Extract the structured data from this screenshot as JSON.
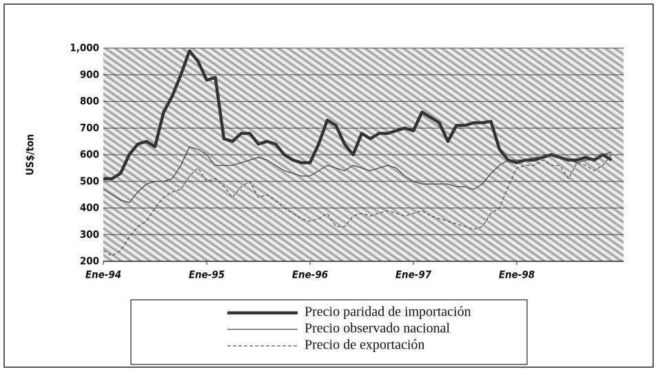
{
  "chart_data": {
    "type": "line",
    "ylabel": "US$/ton",
    "categories": [
      "Ene-94",
      null,
      null,
      null,
      null,
      null,
      null,
      null,
      null,
      null,
      null,
      null,
      "Ene-95",
      null,
      null,
      null,
      null,
      null,
      null,
      null,
      null,
      null,
      null,
      null,
      "Ene-96",
      null,
      null,
      null,
      null,
      null,
      null,
      null,
      null,
      null,
      null,
      null,
      "Ene-97",
      null,
      null,
      null,
      null,
      null,
      null,
      null,
      null,
      null,
      null,
      null,
      "Ene-98",
      null,
      null,
      null,
      null,
      null,
      null,
      null,
      null,
      null,
      null,
      null
    ],
    "series": [
      {
        "name": "Precio paridad de importación",
        "color": "#333333",
        "values": [
          510,
          510,
          530,
          600,
          640,
          650,
          630,
          760,
          820,
          900,
          990,
          950,
          880,
          890,
          660,
          650,
          680,
          680,
          640,
          650,
          640,
          600,
          580,
          570,
          570,
          640,
          730,
          710,
          640,
          600,
          680,
          660,
          680,
          680,
          690,
          700,
          690,
          760,
          740,
          720,
          650,
          710,
          710,
          720,
          720,
          725,
          620,
          580,
          570,
          580,
          580,
          590,
          600,
          590,
          580,
          580,
          590,
          580,
          600,
          580
        ]
      },
      {
        "name": "Precio observado nacional",
        "color": "#444444",
        "values": [
          470,
          450,
          430,
          420,
          460,
          490,
          500,
          500,
          510,
          560,
          630,
          620,
          600,
          560,
          560,
          560,
          570,
          580,
          590,
          580,
          560,
          540,
          530,
          520,
          520,
          540,
          560,
          550,
          540,
          560,
          550,
          540,
          550,
          560,
          550,
          520,
          500,
          490,
          490,
          490,
          490,
          480,
          480,
          470,
          490,
          530,
          560,
          580,
          580,
          580,
          590,
          590,
          600,
          590,
          580,
          570,
          580,
          580,
          600,
          610
        ]
      },
      {
        "name": "Precio de exportación",
        "color": "#555555",
        "values": [
          240,
          220,
          240,
          290,
          330,
          350,
          400,
          440,
          460,
          470,
          520,
          550,
          500,
          510,
          480,
          440,
          480,
          500,
          440,
          450,
          430,
          400,
          380,
          360,
          350,
          360,
          380,
          330,
          330,
          370,
          380,
          370,
          380,
          390,
          380,
          370,
          380,
          390,
          370,
          360,
          350,
          340,
          330,
          320,
          330,
          380,
          400,
          480,
          550,
          560,
          560,
          580,
          560,
          560,
          510,
          570,
          560,
          540,
          560,
          600
        ]
      }
    ],
    "ylim": [
      200,
      1000
    ],
    "yticks": [
      200,
      300,
      400,
      500,
      600,
      700,
      800,
      900,
      {
        "value": 1000,
        "label": "1,000"
      }
    ],
    "grid": true
  }
}
